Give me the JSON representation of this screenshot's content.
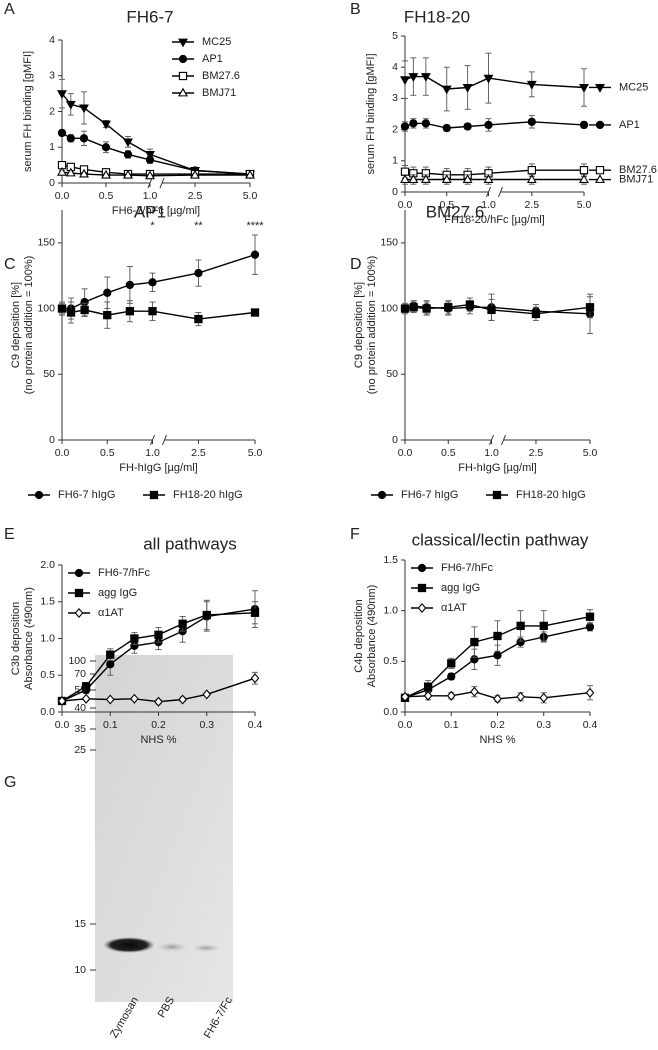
{
  "chart_data": [
    {
      "type": "line",
      "panel": "A",
      "title": "FH6-7",
      "xlabel": "FH6-7/hFc [µg/ml]",
      "ylabel": [
        "serum FH binding [gMFI]"
      ],
      "x": [
        0,
        0.1,
        0.25,
        0.5,
        0.75,
        1,
        2.5,
        5
      ],
      "xsegments": [
        [
          0,
          1
        ],
        [
          1,
          5
        ]
      ],
      "xticks": [
        {
          "value": 0,
          "label": "0.0"
        },
        0.5,
        {
          "value": 1,
          "label": "1.0"
        },
        2.5,
        {
          "value": 5,
          "label": "5.0"
        }
      ],
      "ylim": [
        0,
        4
      ],
      "yticks": [
        0,
        1,
        2,
        3,
        4
      ],
      "legend": "upper right",
      "series": [
        {
          "name": "MC25",
          "marker": "triangle-down",
          "color": "#000000",
          "values": [
            2.5,
            2.2,
            2.1,
            1.65,
            1.15,
            0.8,
            0.35,
            0.25
          ],
          "errors": [
            0.4,
            0.3,
            0.45,
            0.1,
            0.15,
            0.15,
            0.05,
            0.03
          ]
        },
        {
          "name": "AP1",
          "marker": "circle",
          "color": "#000000",
          "values": [
            1.4,
            1.25,
            1.25,
            1.0,
            0.8,
            0.65,
            0.35,
            0.25
          ],
          "errors": [
            0.08,
            0.1,
            0.2,
            0.15,
            0.1,
            0.1,
            0.05,
            0.03
          ]
        },
        {
          "name": "BM27.6",
          "marker": "square-open",
          "color": "#000000",
          "values": [
            0.5,
            0.45,
            0.38,
            0.3,
            0.25,
            0.25,
            0.25,
            0.25
          ],
          "errors": [
            0.05,
            0.05,
            0.05,
            0.05,
            0.03,
            0.03,
            0.03,
            0.03
          ]
        },
        {
          "name": "BMJ71",
          "marker": "triangle-open",
          "color": "#000000",
          "values": [
            0.3,
            0.28,
            0.25,
            0.22,
            0.22,
            0.2,
            0.22,
            0.22
          ],
          "errors": [
            0.05,
            0.05,
            0.04,
            0.03,
            0.03,
            0.03,
            0.03,
            0.03
          ]
        }
      ]
    },
    {
      "type": "line",
      "panel": "B",
      "title": "FH18-20",
      "xlabel": "FH18-20/hFc [µg/ml]",
      "ylabel": [
        "serum FH binding [gMFI]"
      ],
      "x": [
        0,
        0.1,
        0.25,
        0.5,
        0.75,
        1,
        2.5,
        5
      ],
      "xsegments": [
        [
          0,
          1
        ],
        [
          1,
          5
        ]
      ],
      "xticks": [
        {
          "value": 0,
          "label": "0.0"
        },
        0.5,
        {
          "value": 1,
          "label": "1.0"
        },
        2.5,
        {
          "value": 5,
          "label": "5.0"
        }
      ],
      "ylim": [
        0,
        5
      ],
      "yticks": [
        0,
        1,
        2,
        3,
        4,
        5
      ],
      "legend": "line-end",
      "series": [
        {
          "name": "MC25",
          "marker": "triangle-down",
          "color": "#000000",
          "values": [
            3.6,
            3.7,
            3.7,
            3.3,
            3.35,
            3.65,
            3.45,
            3.35
          ],
          "errors": [
            0.6,
            0.6,
            0.6,
            0.7,
            0.7,
            0.8,
            0.4,
            0.6
          ]
        },
        {
          "name": "AP1",
          "marker": "circle",
          "color": "#000000",
          "values": [
            2.1,
            2.2,
            2.2,
            2.05,
            2.1,
            2.15,
            2.25,
            2.15
          ],
          "errors": [
            0.15,
            0.15,
            0.15,
            0.1,
            0.1,
            0.2,
            0.2,
            0.1
          ]
        },
        {
          "name": "BM27.6",
          "marker": "square-open",
          "color": "#000000",
          "values": [
            0.65,
            0.6,
            0.6,
            0.55,
            0.55,
            0.6,
            0.7,
            0.7
          ],
          "errors": [
            0.2,
            0.2,
            0.2,
            0.2,
            0.2,
            0.2,
            0.2,
            0.2
          ]
        },
        {
          "name": "BMJ71",
          "marker": "triangle-open",
          "color": "#000000",
          "values": [
            0.4,
            0.4,
            0.4,
            0.4,
            0.4,
            0.4,
            0.4,
            0.4
          ],
          "errors": [
            0.15,
            0.15,
            0.15,
            0.15,
            0.15,
            0.15,
            0.15,
            0.15
          ]
        }
      ]
    },
    {
      "type": "line",
      "panel": "C",
      "title": "AP1",
      "xlabel": "FH-hIgG [µg/ml]",
      "ylabel": [
        "C9 deposition [%]",
        "(no protein addition = 100%)"
      ],
      "x": [
        0,
        0.1,
        0.25,
        0.5,
        0.75,
        1,
        2.5,
        5
      ],
      "xsegments": [
        [
          0,
          1
        ],
        [
          1,
          5
        ]
      ],
      "xticks": [
        {
          "value": 0,
          "label": "0.0"
        },
        0.5,
        {
          "value": 1,
          "label": "1.0"
        },
        2.5,
        {
          "value": 5,
          "label": "5.0"
        }
      ],
      "ylim": [
        0,
        175
      ],
      "yticks": [
        0,
        50,
        100,
        150
      ],
      "legend": "below",
      "annotations": [
        {
          "text": "*",
          "x": 1
        },
        {
          "text": "**",
          "x": 2.5
        },
        {
          "text": "****",
          "x": 5
        }
      ],
      "series": [
        {
          "name": "FH6-7 hIgG",
          "marker": "circle",
          "color": "#000000",
          "values": [
            100,
            100,
            105,
            112,
            118,
            120,
            127,
            141
          ],
          "errors": [
            5,
            8,
            10,
            12,
            14,
            7,
            10,
            15
          ]
        },
        {
          "name": "FH18-20 hIgG",
          "marker": "square",
          "color": "#000000",
          "values": [
            100,
            97,
            99,
            95,
            98,
            98,
            92,
            97
          ],
          "errors": [
            4,
            8,
            5,
            10,
            8,
            7,
            5,
            2
          ]
        }
      ]
    },
    {
      "type": "line",
      "panel": "D",
      "title": "BM27.6",
      "xlabel": "FH-hIgG [µg/ml]",
      "ylabel": [
        "C9 deposition [%]",
        "(no protein addition = 100%)"
      ],
      "x": [
        0,
        0.1,
        0.25,
        0.5,
        0.75,
        1,
        2.5,
        5
      ],
      "xsegments": [
        [
          0,
          1
        ],
        [
          1,
          5
        ]
      ],
      "xticks": [
        {
          "value": 0,
          "label": "0.0"
        },
        0.5,
        {
          "value": 1,
          "label": "1.0"
        },
        2.5,
        {
          "value": 5,
          "label": "5.0"
        }
      ],
      "ylim": [
        0,
        175
      ],
      "yticks": [
        0,
        50,
        100,
        150
      ],
      "legend": "below",
      "series": [
        {
          "name": "FH6-7 hIgG",
          "marker": "circle",
          "color": "#000000",
          "values": [
            100,
            102,
            101,
            100,
            101,
            101,
            98,
            96
          ],
          "errors": [
            4,
            4,
            5,
            5,
            5,
            10,
            5,
            15
          ]
        },
        {
          "name": "FH18-20 hIgG",
          "marker": "square",
          "color": "#000000",
          "values": [
            100,
            101,
            100,
            101,
            103,
            99,
            96,
            101
          ],
          "errors": [
            3,
            4,
            5,
            5,
            5,
            8,
            5,
            8
          ]
        }
      ]
    },
    {
      "type": "line",
      "panel": "E",
      "title": "all pathways",
      "xlabel": "NHS %",
      "ylabel": [
        "C3b deposition",
        "Absorbance (490nm)"
      ],
      "x": [
        0,
        0.05,
        0.1,
        0.15,
        0.2,
        0.25,
        0.3,
        0.4
      ],
      "xlim": [
        0,
        0.4
      ],
      "xticks": [
        {
          "value": 0,
          "label": "0.0"
        },
        0.1,
        0.2,
        0.3,
        0.4
      ],
      "ylim": [
        0,
        2
      ],
      "yticks": [
        {
          "value": 0,
          "label": "0.0"
        },
        0.5,
        {
          "value": 1,
          "label": "1.0"
        },
        1.5,
        {
          "value": 2,
          "label": "2.0"
        }
      ],
      "legend": "upper left",
      "series": [
        {
          "name": "FH6-7/hFc",
          "marker": "circle",
          "color": "#000000",
          "values": [
            0.15,
            0.3,
            0.65,
            0.9,
            0.95,
            1.1,
            1.3,
            1.4
          ],
          "errors": [
            0.02,
            0.05,
            0.15,
            0.1,
            0.1,
            0.15,
            0.2,
            0.25
          ]
        },
        {
          "name": "agg IgG",
          "marker": "square",
          "color": "#000000",
          "values": [
            0.15,
            0.35,
            0.78,
            1.0,
            1.05,
            1.2,
            1.32,
            1.35
          ],
          "errors": [
            0.02,
            0.05,
            0.08,
            0.08,
            0.1,
            0.1,
            0.2,
            0.15
          ]
        },
        {
          "name": "α1AT",
          "marker": "diamond-open",
          "color": "#000000",
          "values": [
            0.15,
            0.18,
            0.17,
            0.18,
            0.14,
            0.17,
            0.24,
            0.46
          ],
          "errors": [
            0.02,
            0.02,
            0.02,
            0.02,
            0.03,
            0.03,
            0.02,
            0.08
          ]
        }
      ]
    },
    {
      "type": "line",
      "panel": "F",
      "title": "classical/lectin pathway",
      "xlabel": "NHS %",
      "ylabel": [
        "C4b deposition",
        "Absorbance (490nm)"
      ],
      "x": [
        0,
        0.05,
        0.1,
        0.15,
        0.2,
        0.25,
        0.3,
        0.4
      ],
      "xlim": [
        0,
        0.4
      ],
      "xticks": [
        {
          "value": 0,
          "label": "0.0"
        },
        0.1,
        0.2,
        0.3,
        0.4
      ],
      "ylim": [
        0,
        1.5
      ],
      "yticks": [
        {
          "value": 0,
          "label": "0.0"
        },
        0.5,
        {
          "value": 1,
          "label": "1.0"
        },
        1.5
      ],
      "legend": "upper left",
      "series": [
        {
          "name": "FH6-7/hFc",
          "marker": "circle",
          "color": "#000000",
          "values": [
            0.14,
            0.22,
            0.35,
            0.52,
            0.56,
            0.69,
            0.74,
            0.84
          ],
          "errors": [
            0.02,
            0.05,
            0.03,
            0.1,
            0.1,
            0.05,
            0.05,
            0.04
          ]
        },
        {
          "name": "agg IgG",
          "marker": "square",
          "color": "#000000",
          "values": [
            0.14,
            0.25,
            0.48,
            0.69,
            0.75,
            0.85,
            0.85,
            0.94
          ],
          "errors": [
            0.02,
            0.06,
            0.05,
            0.15,
            0.15,
            0.15,
            0.15,
            0.07
          ]
        },
        {
          "name": "α1AT",
          "marker": "diamond-open",
          "color": "#000000",
          "values": [
            0.15,
            0.16,
            0.16,
            0.2,
            0.13,
            0.15,
            0.14,
            0.19
          ],
          "errors": [
            0.02,
            0.04,
            0.03,
            0.05,
            0.03,
            0.04,
            0.05,
            0.07
          ]
        }
      ]
    }
  ],
  "gel": {
    "panel": "G",
    "markers": [
      100,
      70,
      55,
      40,
      35,
      25,
      15,
      10
    ],
    "lanes": [
      "Zymosan",
      "PBS",
      "FH6-7/Fc"
    ]
  }
}
